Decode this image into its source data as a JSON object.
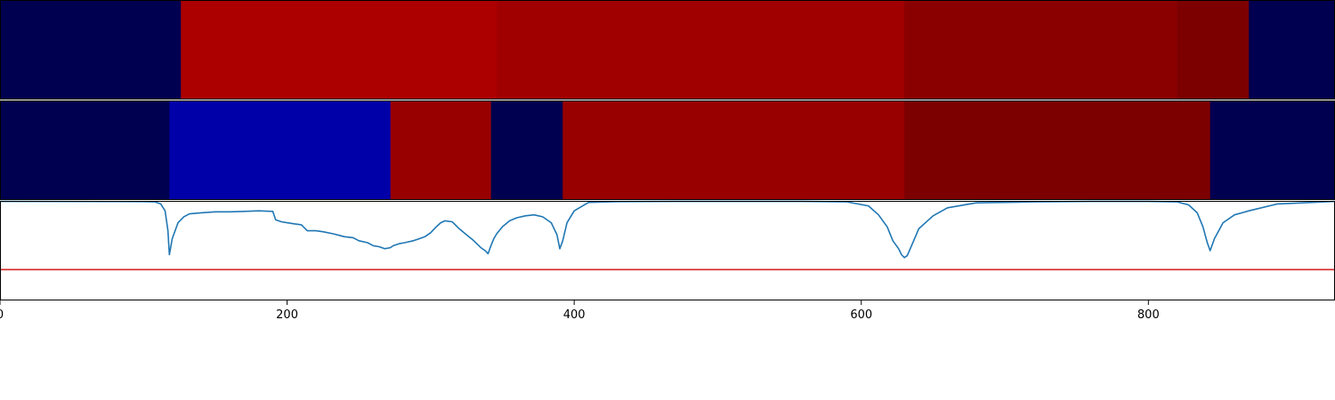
{
  "chart_data": [
    {
      "type": "heatmap",
      "x_range": [
        0,
        930
      ],
      "segments": [
        {
          "start": 0,
          "end": 126,
          "color": "#000050"
        },
        {
          "start": 126,
          "end": 346,
          "color": "#ac0000"
        },
        {
          "start": 346,
          "end": 630,
          "color": "#a00000"
        },
        {
          "start": 630,
          "end": 820,
          "color": "#8a0000"
        },
        {
          "start": 820,
          "end": 870,
          "color": "#7c0000"
        },
        {
          "start": 870,
          "end": 930,
          "color": "#000050"
        }
      ]
    },
    {
      "type": "heatmap",
      "x_range": [
        0,
        930
      ],
      "segments": [
        {
          "start": 0,
          "end": 118,
          "color": "#000050"
        },
        {
          "start": 118,
          "end": 272,
          "color": "#0000a8"
        },
        {
          "start": 272,
          "end": 342,
          "color": "#980000"
        },
        {
          "start": 342,
          "end": 392,
          "color": "#000050"
        },
        {
          "start": 392,
          "end": 630,
          "color": "#980000"
        },
        {
          "start": 630,
          "end": 843,
          "color": "#7c0000"
        },
        {
          "start": 843,
          "end": 930,
          "color": "#000050"
        }
      ]
    },
    {
      "type": "line",
      "xlim": [
        0,
        930
      ],
      "ylim": [
        0,
        1
      ],
      "x_ticks": [
        0,
        200,
        400,
        600,
        800
      ],
      "x_tick_labels": [
        "0",
        "200",
        "400",
        "600",
        "800"
      ],
      "threshold": 0.31,
      "threshold_color": "#d62728",
      "line_color": "#1f77b4",
      "x": [
        0,
        100,
        108,
        112,
        115,
        117,
        118,
        120,
        124,
        128,
        132,
        140,
        150,
        160,
        170,
        180,
        190,
        192,
        194,
        196,
        200,
        205,
        210,
        214,
        220,
        225,
        232,
        240,
        246,
        250,
        256,
        260,
        264,
        268,
        272,
        274,
        278,
        282,
        288,
        292,
        296,
        300,
        304,
        307,
        310,
        315,
        320,
        325,
        330,
        335,
        338,
        340,
        342,
        344,
        346,
        350,
        355,
        360,
        366,
        372,
        378,
        384,
        388,
        390,
        392,
        395,
        400,
        410,
        430,
        470,
        520,
        560,
        590,
        605,
        612,
        618,
        622,
        626,
        628,
        630,
        632,
        635,
        640,
        650,
        660,
        680,
        720,
        760,
        800,
        820,
        828,
        834,
        838,
        841,
        843,
        846,
        852,
        860,
        870,
        890,
        930
      ],
      "y": [
        0.995,
        0.993,
        0.99,
        0.97,
        0.9,
        0.7,
        0.46,
        0.62,
        0.78,
        0.84,
        0.87,
        0.88,
        0.89,
        0.89,
        0.895,
        0.9,
        0.895,
        0.81,
        0.8,
        0.79,
        0.78,
        0.77,
        0.76,
        0.7,
        0.7,
        0.69,
        0.67,
        0.64,
        0.63,
        0.6,
        0.58,
        0.55,
        0.54,
        0.52,
        0.53,
        0.55,
        0.57,
        0.58,
        0.6,
        0.62,
        0.64,
        0.68,
        0.74,
        0.78,
        0.8,
        0.79,
        0.72,
        0.66,
        0.6,
        0.53,
        0.5,
        0.47,
        0.55,
        0.62,
        0.67,
        0.74,
        0.8,
        0.83,
        0.85,
        0.86,
        0.84,
        0.78,
        0.66,
        0.52,
        0.6,
        0.78,
        0.9,
        0.985,
        0.993,
        0.995,
        0.995,
        0.995,
        0.99,
        0.95,
        0.86,
        0.74,
        0.6,
        0.52,
        0.46,
        0.43,
        0.45,
        0.55,
        0.72,
        0.85,
        0.93,
        0.98,
        0.99,
        0.995,
        0.995,
        0.99,
        0.96,
        0.88,
        0.74,
        0.58,
        0.5,
        0.62,
        0.78,
        0.86,
        0.9,
        0.97,
        0.995
      ]
    }
  ]
}
